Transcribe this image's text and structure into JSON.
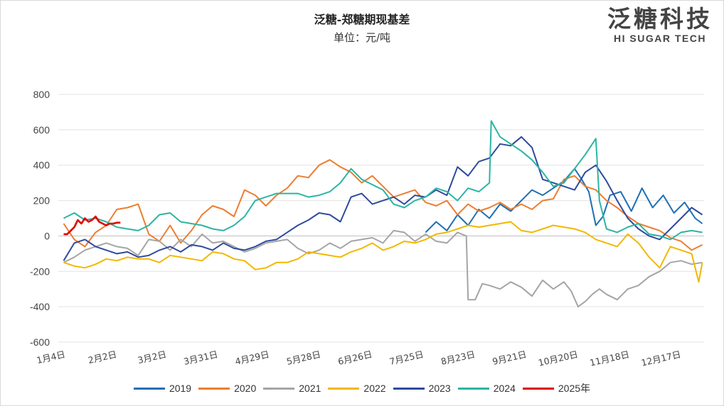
{
  "header": {
    "title": "泛糖-郑糖期现基差",
    "subtitle": "单位：元/吨"
  },
  "brand": {
    "cn": "泛糖科技",
    "en": "HI SUGAR TECH",
    "color": "#444444"
  },
  "chart_data": {
    "type": "line",
    "title": "泛糖-郑糖期现基差",
    "ylabel": "单位：元/吨",
    "ylim": [
      -600,
      800
    ],
    "yticks": [
      800,
      600,
      400,
      200,
      0,
      -200,
      -400,
      -600
    ],
    "grid": true,
    "x_domain": [
      1,
      365
    ],
    "xticks": [
      {
        "label": "1月4日",
        "day": 4
      },
      {
        "label": "2月2日",
        "day": 33
      },
      {
        "label": "3月2日",
        "day": 61
      },
      {
        "label": "3月31日",
        "day": 90
      },
      {
        "label": "4月29日",
        "day": 119
      },
      {
        "label": "5月28日",
        "day": 148
      },
      {
        "label": "6月26日",
        "day": 177
      },
      {
        "label": "7月25日",
        "day": 206
      },
      {
        "label": "8月23日",
        "day": 235
      },
      {
        "label": "9月21日",
        "day": 264
      },
      {
        "label": "10月20日",
        "day": 293
      },
      {
        "label": "11月18日",
        "day": 322
      },
      {
        "label": "12月17日",
        "day": 351
      }
    ],
    "legend_position": "bottom",
    "series": [
      {
        "name": "2019",
        "color": "#1f6fb5",
        "x": [
          208,
          214,
          220,
          226,
          232,
          238,
          244,
          250,
          256,
          262,
          268,
          274,
          280,
          286,
          292,
          296,
          300,
          304,
          308,
          312,
          318,
          324,
          330,
          336,
          342,
          348,
          354,
          360,
          364
        ],
        "y": [
          20,
          80,
          30,
          120,
          60,
          150,
          100,
          180,
          140,
          200,
          260,
          230,
          270,
          310,
          380,
          320,
          250,
          60,
          110,
          230,
          250,
          140,
          270,
          160,
          230,
          130,
          190,
          100,
          70
        ]
      },
      {
        "name": "2020",
        "color": "#ed7d31",
        "x": [
          4,
          10,
          16,
          22,
          28,
          34,
          40,
          46,
          52,
          58,
          64,
          70,
          76,
          82,
          88,
          94,
          100,
          106,
          112,
          118,
          124,
          130,
          136,
          142,
          148,
          154,
          160,
          166,
          172,
          178,
          184,
          190,
          196,
          202,
          208,
          214,
          220,
          226,
          232,
          238,
          244,
          250,
          256,
          262,
          268,
          274,
          280,
          286,
          292,
          298,
          304,
          310,
          316,
          322,
          328,
          334,
          340,
          346,
          352,
          358,
          364
        ],
        "y": [
          70,
          -20,
          -60,
          20,
          60,
          150,
          160,
          180,
          10,
          -30,
          60,
          -40,
          30,
          120,
          170,
          150,
          110,
          260,
          230,
          170,
          230,
          270,
          340,
          330,
          400,
          430,
          390,
          360,
          300,
          340,
          280,
          220,
          240,
          260,
          190,
          170,
          200,
          120,
          180,
          140,
          160,
          190,
          150,
          180,
          150,
          200,
          210,
          320,
          340,
          280,
          260,
          200,
          160,
          110,
          70,
          50,
          30,
          -10,
          -30,
          -80,
          -50
        ]
      },
      {
        "name": "2021",
        "color": "#a5a5a5",
        "x": [
          4,
          10,
          16,
          22,
          28,
          34,
          40,
          46,
          52,
          58,
          64,
          70,
          76,
          82,
          88,
          94,
          100,
          106,
          112,
          118,
          124,
          130,
          136,
          142,
          148,
          154,
          160,
          166,
          172,
          178,
          184,
          190,
          196,
          202,
          208,
          214,
          220,
          226,
          231,
          232,
          236,
          240,
          244,
          250,
          256,
          262,
          268,
          274,
          280,
          286,
          290,
          294,
          298,
          302,
          306,
          310,
          316,
          322,
          328,
          334,
          340,
          346,
          352,
          358,
          364
        ],
        "y": [
          -150,
          -120,
          -80,
          -60,
          -40,
          -60,
          -70,
          -110,
          -20,
          -30,
          -80,
          -20,
          -60,
          10,
          -40,
          -30,
          -60,
          -90,
          -70,
          -40,
          -30,
          -20,
          -70,
          -100,
          -80,
          -40,
          -70,
          -30,
          -20,
          -10,
          -40,
          30,
          20,
          -30,
          10,
          -30,
          -40,
          20,
          0,
          -360,
          -360,
          -270,
          -280,
          -300,
          -260,
          -290,
          -340,
          -250,
          -300,
          -260,
          -310,
          -400,
          -370,
          -330,
          -300,
          -330,
          -360,
          -300,
          -280,
          -230,
          -200,
          -150,
          -140,
          -160,
          -150
        ]
      },
      {
        "name": "2022",
        "color": "#f2b800",
        "x": [
          4,
          10,
          16,
          22,
          28,
          34,
          40,
          46,
          52,
          58,
          64,
          70,
          76,
          82,
          88,
          94,
          100,
          106,
          112,
          118,
          124,
          130,
          136,
          142,
          148,
          154,
          160,
          166,
          172,
          178,
          184,
          190,
          196,
          202,
          208,
          214,
          220,
          226,
          232,
          238,
          244,
          250,
          256,
          262,
          268,
          274,
          280,
          286,
          292,
          298,
          304,
          310,
          316,
          322,
          328,
          334,
          340,
          346,
          352,
          358,
          362,
          364
        ],
        "y": [
          -150,
          -170,
          -180,
          -160,
          -130,
          -140,
          -120,
          -130,
          -130,
          -150,
          -110,
          -120,
          -130,
          -140,
          -90,
          -100,
          -130,
          -140,
          -190,
          -180,
          -150,
          -150,
          -130,
          -90,
          -100,
          -110,
          -120,
          -90,
          -70,
          -40,
          -80,
          -60,
          -30,
          -40,
          -20,
          10,
          20,
          40,
          60,
          50,
          60,
          70,
          80,
          30,
          20,
          40,
          60,
          50,
          40,
          20,
          -20,
          -40,
          -60,
          10,
          -40,
          -120,
          -180,
          -60,
          -80,
          -100,
          -260,
          -150
        ]
      },
      {
        "name": "2023",
        "color": "#2e4a9e",
        "x": [
          4,
          10,
          16,
          22,
          28,
          34,
          40,
          46,
          52,
          58,
          64,
          70,
          76,
          82,
          88,
          94,
          100,
          106,
          112,
          118,
          124,
          130,
          136,
          142,
          148,
          154,
          160,
          166,
          172,
          178,
          184,
          190,
          196,
          202,
          208,
          214,
          220,
          226,
          232,
          238,
          244,
          250,
          256,
          262,
          268,
          274,
          280,
          286,
          292,
          298,
          304,
          310,
          316,
          322,
          328,
          334,
          340,
          346,
          352,
          358,
          364
        ],
        "y": [
          -140,
          -40,
          -20,
          -60,
          -80,
          -100,
          -90,
          -120,
          -110,
          -80,
          -60,
          -90,
          -50,
          -60,
          -80,
          -40,
          -70,
          -80,
          -60,
          -30,
          -20,
          20,
          60,
          90,
          130,
          120,
          80,
          220,
          240,
          180,
          200,
          220,
          180,
          230,
          220,
          260,
          230,
          390,
          340,
          420,
          440,
          520,
          510,
          560,
          500,
          320,
          300,
          280,
          260,
          360,
          400,
          310,
          200,
          100,
          40,
          0,
          -20,
          40,
          100,
          160,
          120
        ]
      },
      {
        "name": "2024",
        "color": "#2bb5a3",
        "x": [
          4,
          10,
          16,
          22,
          28,
          34,
          40,
          46,
          52,
          58,
          64,
          70,
          76,
          82,
          88,
          94,
          100,
          106,
          112,
          118,
          124,
          130,
          136,
          142,
          148,
          154,
          160,
          166,
          172,
          178,
          184,
          190,
          196,
          202,
          208,
          214,
          220,
          226,
          232,
          238,
          244,
          245,
          250,
          256,
          262,
          268,
          274,
          280,
          286,
          292,
          298,
          304,
          306,
          310,
          316,
          322,
          328,
          334,
          340,
          346,
          352,
          358,
          364
        ],
        "y": [
          100,
          130,
          90,
          100,
          80,
          50,
          40,
          30,
          60,
          120,
          130,
          80,
          70,
          60,
          40,
          30,
          60,
          110,
          200,
          220,
          240,
          240,
          240,
          220,
          230,
          250,
          300,
          380,
          320,
          290,
          260,
          180,
          160,
          200,
          220,
          270,
          250,
          200,
          270,
          250,
          300,
          650,
          560,
          520,
          480,
          430,
          360,
          280,
          300,
          380,
          460,
          550,
          200,
          40,
          20,
          50,
          70,
          10,
          0,
          -20,
          20,
          30,
          20
        ]
      },
      {
        "name": "2025年",
        "color": "#e00000",
        "x": [
          4,
          6,
          8,
          10,
          12,
          14,
          16,
          18,
          20,
          22,
          24,
          26,
          28,
          30,
          32,
          34,
          36
        ],
        "y": [
          10,
          10,
          30,
          50,
          90,
          70,
          100,
          80,
          90,
          110,
          80,
          70,
          60,
          70,
          70,
          75,
          75
        ]
      }
    ]
  }
}
